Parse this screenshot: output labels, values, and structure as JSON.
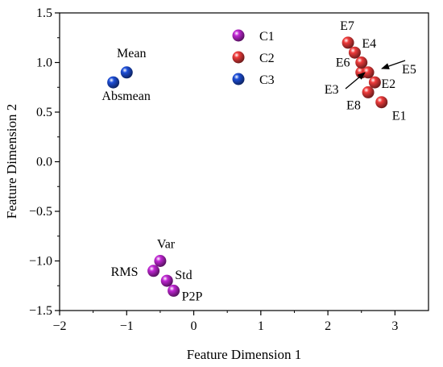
{
  "chart_data": {
    "type": "scatter",
    "xlabel": "Feature Dimension 1",
    "ylabel": "Feature Dimension 2",
    "xlim": [
      -2,
      3.5
    ],
    "ylim": [
      -1.5,
      1.5
    ],
    "x_ticks": [
      -2,
      -1,
      0,
      1,
      2,
      3
    ],
    "x_tick_labels": [
      "−2",
      "−1",
      "0",
      "1",
      "2",
      "3"
    ],
    "y_ticks": [
      -1.5,
      -1.0,
      -0.5,
      0.0,
      0.5,
      1.0,
      1.5
    ],
    "y_tick_labels": [
      "−1.5",
      "−1.0",
      "−0.5",
      "0.0",
      "0.5",
      "1.0",
      "1.5"
    ],
    "grid": false,
    "legend_position": "top-center",
    "series": [
      {
        "name": "C1",
        "color": "#c026d3",
        "points": [
          {
            "label": "Var",
            "x": -0.5,
            "y": -1.0
          },
          {
            "label": "RMS",
            "x": -0.6,
            "y": -1.1
          },
          {
            "label": "Std",
            "x": -0.4,
            "y": -1.2
          },
          {
            "label": "P2P",
            "x": -0.3,
            "y": -1.3
          }
        ]
      },
      {
        "name": "C2",
        "color": "#ef3b3b",
        "points": [
          {
            "label": "E1",
            "x": 2.8,
            "y": 0.6
          },
          {
            "label": "E2",
            "x": 2.7,
            "y": 0.8
          },
          {
            "label": "E3",
            "x": 2.5,
            "y": 0.9
          },
          {
            "label": "E4",
            "x": 2.4,
            "y": 1.1
          },
          {
            "label": "E5",
            "x": 2.6,
            "y": 0.9
          },
          {
            "label": "E6",
            "x": 2.5,
            "y": 1.0
          },
          {
            "label": "E7",
            "x": 2.3,
            "y": 1.2
          },
          {
            "label": "E8",
            "x": 2.6,
            "y": 0.7
          }
        ]
      },
      {
        "name": "C3",
        "color": "#1d4ed8",
        "points": [
          {
            "label": "Mean",
            "x": -1.0,
            "y": 0.9
          },
          {
            "label": "Absmean",
            "x": -1.2,
            "y": 0.8
          }
        ]
      }
    ]
  }
}
